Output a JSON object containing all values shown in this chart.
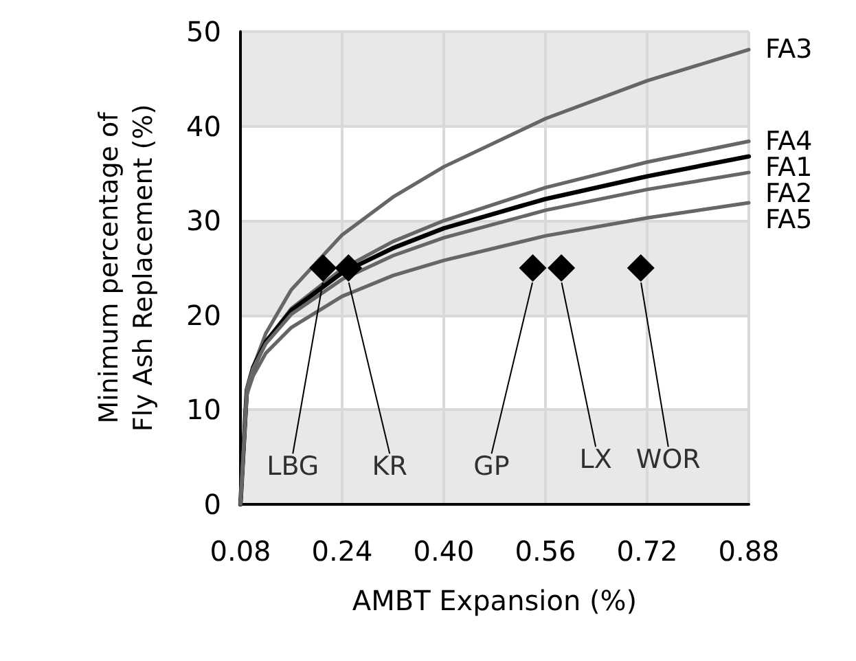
{
  "chart_data": {
    "type": "line",
    "xlabel": "AMBT Expansion (%)",
    "ylabel": "Minimum percentage of Fly Ash Replacement (%)",
    "x": [
      0.08,
      0.09,
      0.1,
      0.12,
      0.16,
      0.24,
      0.32,
      0.4,
      0.56,
      0.72,
      0.88
    ],
    "series": [
      {
        "name": "FA3",
        "color": "#666666",
        "values": [
          0,
          11.5,
          14.5,
          18.1,
          22.7,
          28.5,
          32.5,
          35.7,
          40.8,
          44.8,
          48.1
        ]
      },
      {
        "name": "FA4",
        "color": "#666666",
        "values": [
          0,
          11.8,
          14.2,
          17.2,
          20.7,
          24.9,
          27.8,
          30.0,
          33.5,
          36.2,
          38.4
        ]
      },
      {
        "name": "FA1",
        "color": "#000000",
        "values": [
          0,
          12.1,
          14.5,
          17.2,
          20.5,
          24.5,
          27.1,
          29.2,
          32.3,
          34.7,
          36.8
        ]
      },
      {
        "name": "FA2",
        "color": "#666666",
        "values": [
          0,
          12.2,
          14.4,
          17.0,
          20.1,
          23.8,
          26.3,
          28.2,
          31.1,
          33.3,
          35.1
        ]
      },
      {
        "name": "FA5",
        "color": "#666666",
        "values": [
          0,
          11.6,
          13.6,
          16.0,
          18.7,
          22.0,
          24.2,
          25.8,
          28.4,
          30.3,
          31.9
        ]
      },
      {
        "type": "scatter",
        "marker": "diamond",
        "color": "#000000",
        "x": [
          0.21,
          0.25,
          0.54,
          0.585,
          0.71
        ],
        "values": [
          25,
          25,
          25,
          25,
          25
        ]
      }
    ],
    "annotations": [
      {
        "text": "LBG",
        "x": 0.21,
        "y": 23.6
      },
      {
        "text": "KR",
        "x": 0.25,
        "y": 23.6
      },
      {
        "text": "GP",
        "x": 0.54,
        "y": 23.6
      },
      {
        "text": "LX",
        "x": 0.585,
        "y": 23.6
      },
      {
        "text": "WOR",
        "x": 0.71,
        "y": 23.6
      }
    ],
    "xlim": [
      0.08,
      0.88
    ],
    "xticks": [
      {
        "value": 0.08,
        "label": "0.08"
      },
      {
        "value": 0.24,
        "label": "0.24"
      },
      {
        "value": 0.4,
        "label": "0.40"
      },
      {
        "value": 0.56,
        "label": "0.56"
      },
      {
        "value": 0.72,
        "label": "0.72"
      },
      {
        "value": 0.88,
        "label": "0.88"
      }
    ],
    "ylim": [
      0,
      50
    ],
    "yticks": [
      0,
      10,
      20,
      30,
      40,
      50
    ],
    "grid": true,
    "legend": false
  }
}
